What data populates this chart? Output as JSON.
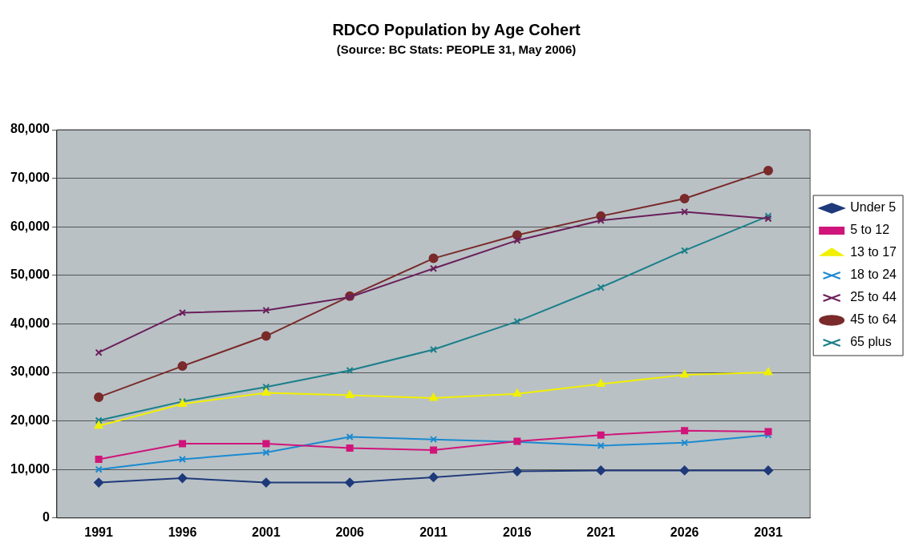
{
  "chart_data": {
    "type": "line",
    "title": "RDCO Population by Age Cohert",
    "subtitle": "(Source: BC Stats: PEOPLE 31, May 2006)",
    "categories": [
      "1991",
      "1996",
      "2001",
      "2006",
      "2011",
      "2016",
      "2021",
      "2026",
      "2031"
    ],
    "series": [
      {
        "name": "Under 5",
        "color": "#1f3a7a",
        "marker": "diamond",
        "values": [
          7300,
          8200,
          7300,
          7300,
          8400,
          9600,
          9800,
          9800,
          9800
        ]
      },
      {
        "name": "5 to 12",
        "color": "#d0157a",
        "marker": "square",
        "values": [
          12100,
          15300,
          15300,
          14400,
          14000,
          15800,
          17100,
          18000,
          17800
        ]
      },
      {
        "name": "13 to 17",
        "color": "#f0f000",
        "marker": "triangle",
        "values": [
          19000,
          23500,
          25800,
          25300,
          24700,
          25600,
          27600,
          29500,
          30000
        ]
      },
      {
        "name": "18 to 24",
        "color": "#1a8ad0",
        "marker": "cross",
        "values": [
          10000,
          12100,
          13500,
          16700,
          16200,
          15700,
          14900,
          15500,
          17100
        ]
      },
      {
        "name": "25 to 44",
        "color": "#6a1f5a",
        "marker": "cross",
        "values": [
          34100,
          42300,
          42800,
          45500,
          51400,
          57200,
          61300,
          63100,
          61700
        ]
      },
      {
        "name": "45 to 64",
        "color": "#7a2a2a",
        "marker": "circle",
        "values": [
          24900,
          31300,
          37500,
          45700,
          53500,
          58300,
          62200,
          65800,
          71600
        ]
      },
      {
        "name": "65 plus",
        "color": "#1a7f8a",
        "marker": "cross",
        "values": [
          20100,
          24000,
          27000,
          30400,
          34700,
          40500,
          47500,
          55100,
          62200
        ]
      }
    ],
    "ylim": [
      0,
      80000
    ],
    "yticks": [
      0,
      {
        "value": 10000,
        "label": "10,000"
      },
      {
        "value": 20000,
        "label": "20,000"
      },
      {
        "value": 30000,
        "label": "30,000"
      },
      {
        "value": 40000,
        "label": "40,000"
      },
      {
        "value": 50000,
        "label": "50,000"
      },
      {
        "value": 60000,
        "label": "60,000"
      },
      {
        "value": 70000,
        "label": "70,000"
      },
      {
        "value": 80000,
        "label": "80,000"
      }
    ],
    "grid": "y",
    "legend": "right"
  }
}
